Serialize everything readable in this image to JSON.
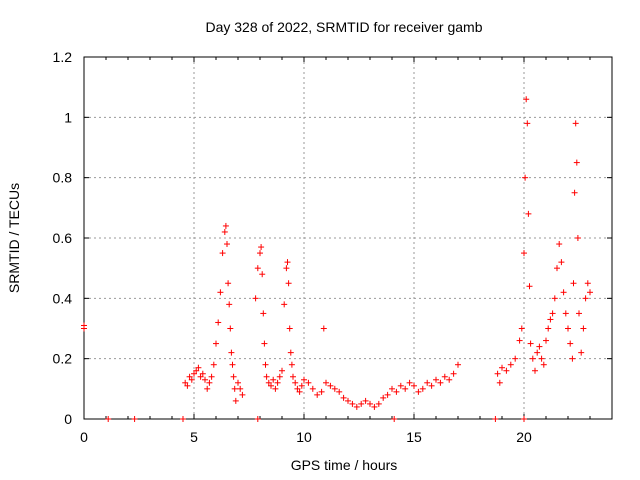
{
  "chart_data": {
    "type": "scatter",
    "title": "Day 328 of 2022, SRMTID for receiver gamb",
    "xlabel": "GPS time / hours",
    "ylabel": "SRMTID / TECUs",
    "xlim": [
      0,
      24
    ],
    "ylim": [
      0,
      1.2
    ],
    "xticks": [
      0,
      5,
      10,
      15,
      20
    ],
    "yticks": [
      0,
      0.2,
      0.4,
      0.6,
      0.8,
      1,
      1.2
    ],
    "ytick_labels": [
      "0",
      "0.2",
      "0.4",
      "0.6",
      "0.8",
      "1",
      "1.2"
    ],
    "grid": true,
    "marker": "+",
    "color": "#ff0000",
    "series": [
      {
        "name": "SRMTID",
        "x": [
          0.0,
          0.0,
          1.1,
          2.3,
          4.5,
          7.9,
          14.1,
          18.7,
          20.0,
          4.6,
          4.7,
          4.8,
          4.9,
          5.0,
          5.1,
          5.2,
          5.3,
          5.4,
          5.5,
          5.6,
          5.7,
          5.8,
          5.9,
          6.0,
          6.1,
          6.2,
          6.3,
          6.4,
          6.45,
          6.5,
          6.55,
          6.6,
          6.65,
          6.7,
          6.75,
          6.8,
          6.85,
          6.9,
          7.0,
          7.1,
          7.2,
          7.8,
          7.9,
          8.0,
          8.05,
          8.1,
          8.15,
          8.2,
          8.25,
          8.3,
          8.4,
          8.5,
          8.6,
          8.7,
          8.8,
          8.9,
          9.0,
          9.1,
          9.2,
          9.25,
          9.3,
          9.35,
          9.4,
          9.45,
          9.5,
          9.6,
          9.7,
          9.8,
          9.9,
          10.0,
          10.2,
          10.4,
          10.6,
          10.8,
          10.9,
          11.0,
          11.2,
          11.4,
          11.6,
          11.8,
          12.0,
          12.2,
          12.4,
          12.6,
          12.8,
          13.0,
          13.2,
          13.4,
          13.6,
          13.8,
          14.0,
          14.2,
          14.4,
          14.6,
          14.8,
          15.0,
          15.2,
          15.4,
          15.6,
          15.8,
          16.0,
          16.2,
          16.4,
          16.6,
          16.8,
          17.0,
          18.8,
          18.9,
          19.0,
          19.2,
          19.4,
          19.6,
          19.8,
          19.9,
          20.0,
          20.05,
          20.1,
          20.15,
          20.2,
          20.25,
          20.3,
          20.4,
          20.5,
          20.6,
          20.7,
          20.8,
          20.9,
          21.0,
          21.1,
          21.2,
          21.3,
          21.4,
          21.5,
          21.6,
          21.7,
          21.8,
          21.9,
          22.0,
          22.1,
          22.2,
          22.25,
          22.3,
          22.35,
          22.4,
          22.45,
          22.5,
          22.6,
          22.7,
          22.8,
          22.9,
          23.0
        ],
        "y": [
          0.31,
          0.3,
          0.0,
          0.0,
          0.0,
          0.0,
          0.0,
          0.0,
          0.0,
          0.12,
          0.11,
          0.14,
          0.13,
          0.15,
          0.16,
          0.17,
          0.14,
          0.15,
          0.13,
          0.1,
          0.12,
          0.14,
          0.18,
          0.25,
          0.32,
          0.42,
          0.55,
          0.62,
          0.64,
          0.58,
          0.45,
          0.38,
          0.3,
          0.22,
          0.18,
          0.14,
          0.1,
          0.06,
          0.12,
          0.1,
          0.08,
          0.4,
          0.5,
          0.55,
          0.57,
          0.48,
          0.35,
          0.25,
          0.18,
          0.14,
          0.12,
          0.11,
          0.13,
          0.1,
          0.12,
          0.14,
          0.16,
          0.38,
          0.5,
          0.52,
          0.45,
          0.3,
          0.22,
          0.18,
          0.14,
          0.12,
          0.1,
          0.09,
          0.11,
          0.13,
          0.12,
          0.1,
          0.08,
          0.09,
          0.3,
          0.12,
          0.11,
          0.1,
          0.09,
          0.07,
          0.06,
          0.05,
          0.04,
          0.05,
          0.06,
          0.05,
          0.04,
          0.05,
          0.07,
          0.08,
          0.1,
          0.09,
          0.11,
          0.1,
          0.12,
          0.11,
          0.09,
          0.1,
          0.12,
          0.11,
          0.13,
          0.12,
          0.14,
          0.13,
          0.15,
          0.18,
          0.15,
          0.12,
          0.17,
          0.16,
          0.18,
          0.2,
          0.26,
          0.3,
          0.55,
          0.8,
          1.06,
          0.98,
          0.68,
          0.44,
          0.25,
          0.2,
          0.16,
          0.22,
          0.24,
          0.2,
          0.18,
          0.26,
          0.3,
          0.33,
          0.35,
          0.4,
          0.5,
          0.58,
          0.52,
          0.42,
          0.35,
          0.3,
          0.25,
          0.2,
          0.45,
          0.75,
          0.98,
          0.85,
          0.6,
          0.35,
          0.22,
          0.3,
          0.4,
          0.45,
          0.42
        ]
      }
    ]
  }
}
